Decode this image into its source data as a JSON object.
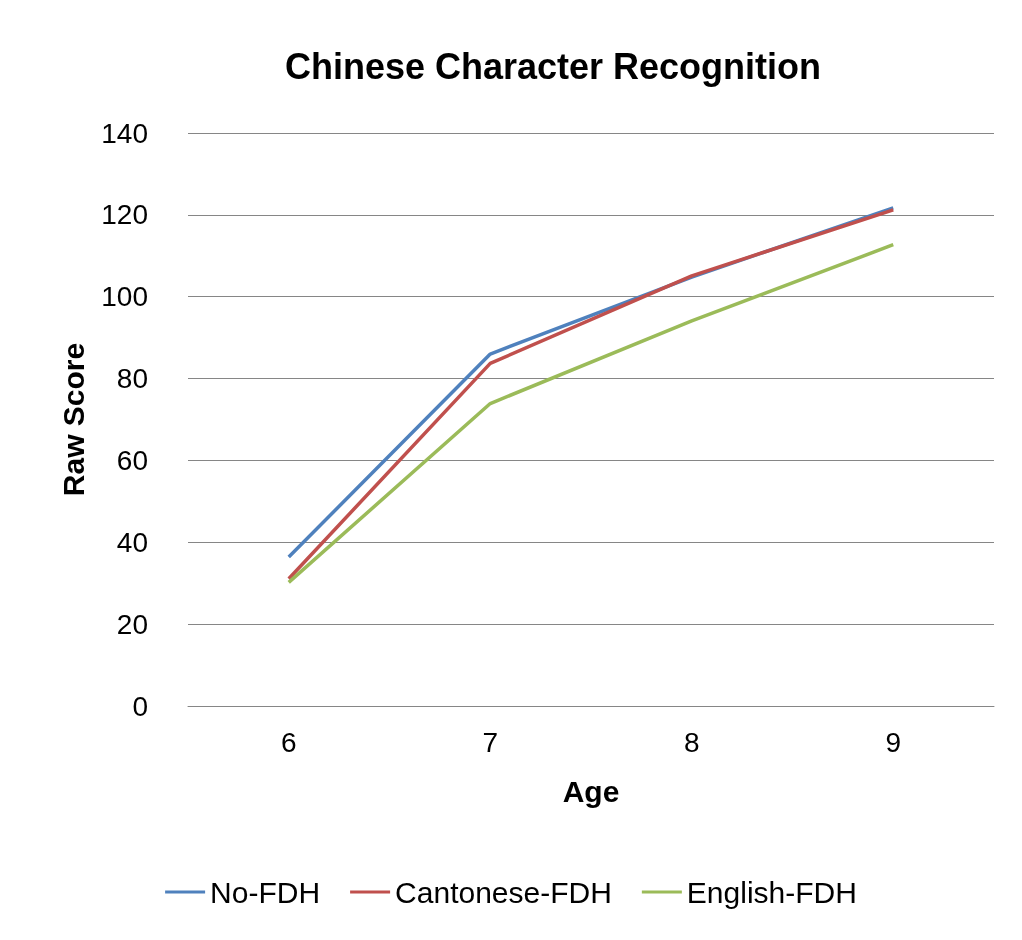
{
  "chart_data": {
    "type": "line",
    "title": "Chinese Character Recognition",
    "xlabel": "Age",
    "ylabel": "Raw Score",
    "categories": [
      "6",
      "7",
      "8",
      "9"
    ],
    "series": [
      {
        "name": "No-FDH",
        "color": "#4f81bd",
        "values": [
          36.4,
          86,
          104.8,
          121.7
        ]
      },
      {
        "name": "Cantonese-FDH",
        "color": "#c0504d",
        "values": [
          31.1,
          83.7,
          105.1,
          121.2
        ]
      },
      {
        "name": "English-FDH",
        "color": "#9bbb59",
        "values": [
          30.2,
          73.9,
          94.1,
          112.7
        ]
      }
    ],
    "ylim": [
      0,
      140
    ],
    "yticks": [
      0,
      20,
      40,
      60,
      80,
      100,
      120,
      140
    ],
    "grid": "y",
    "legend": "bottom",
    "marker": "none",
    "line_style": "solid"
  }
}
